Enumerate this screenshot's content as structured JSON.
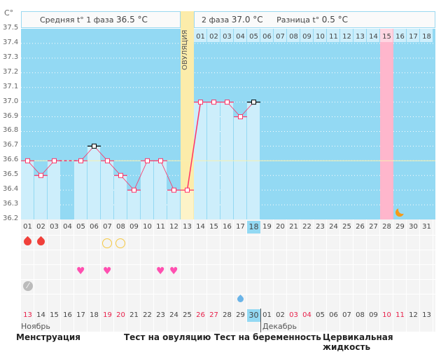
{
  "unit_label": "C°",
  "header": {
    "phase1": "Средняя t° 1 фаза",
    "phase1_value": "36.5 °C",
    "phase2": "2 фаза",
    "phase2_value": "37.0 °C",
    "diff": "Разница t°",
    "diff_value": "0.5 °C"
  },
  "ovulation_label": "ОВУЛЯЦИЯ",
  "chart_data": {
    "type": "line",
    "title": "",
    "ylabel": "C°",
    "ylim": [
      36.2,
      37.5
    ],
    "yticks": [
      "37.5",
      "37.4",
      "37.3",
      "37.2",
      "37.1",
      "37.0",
      "36.9",
      "36.8",
      "36.7",
      "36.6",
      "36.5",
      "36.4",
      "36.3",
      "36.2"
    ],
    "cycle_days": [
      "01",
      "02",
      "03",
      "04",
      "05",
      "06",
      "07",
      "08",
      "09",
      "10",
      "11",
      "12",
      "13",
      "14",
      "15",
      "16",
      "17",
      "18",
      "19",
      "20",
      "21",
      "22",
      "23",
      "24",
      "25",
      "26",
      "27",
      "28",
      "29",
      "30",
      "31"
    ],
    "temperatures": [
      36.6,
      36.5,
      36.6,
      null,
      36.6,
      36.7,
      36.6,
      36.5,
      36.4,
      36.6,
      36.6,
      36.4,
      36.4,
      37.0,
      37.0,
      37.0,
      36.9,
      37.0
    ],
    "cover_line": 36.6,
    "ovulation_day": 13,
    "phase2_days": [
      "01",
      "02",
      "03",
      "04",
      "05",
      "06",
      "07",
      "08",
      "09",
      "10",
      "11",
      "12",
      "13",
      "14",
      "15",
      "16",
      "17",
      "18"
    ],
    "highlight_phase2_day": 15,
    "today_day": 18,
    "moon_day": 29,
    "colors": {
      "line": "#ff3366",
      "bar": "#cdeefb",
      "bg": "#93d9f3",
      "ovulation": "#fcecaa",
      "pink": "#ffb6cc"
    }
  },
  "markers": {
    "menstruation_days": [
      1,
      2
    ],
    "ovulation_test_days": [
      7,
      8
    ],
    "hearts_days": [
      5,
      7,
      11,
      12
    ],
    "pill_days": [
      1
    ],
    "cervical_days": [
      17
    ]
  },
  "calendar": {
    "dates": [
      "13",
      "14",
      "15",
      "16",
      "17",
      "18",
      "19",
      "20",
      "21",
      "22",
      "23",
      "24",
      "25",
      "26",
      "27",
      "28",
      "29",
      "30",
      "01",
      "02",
      "03",
      "04",
      "05",
      "06",
      "07",
      "08",
      "09",
      "10",
      "11",
      "12",
      "13"
    ],
    "red_indices": [
      0,
      6,
      7,
      13,
      14,
      20,
      21,
      27,
      28
    ],
    "today_index": 17,
    "month1": "Ноябрь",
    "month2": "Декабрь"
  },
  "legend": {
    "menstruation": "Менструация",
    "ovulation_test": "Тест на овуляцию",
    "pregnancy_test": "Тест на беременность",
    "cervical": "Цервикальная жидкость"
  }
}
